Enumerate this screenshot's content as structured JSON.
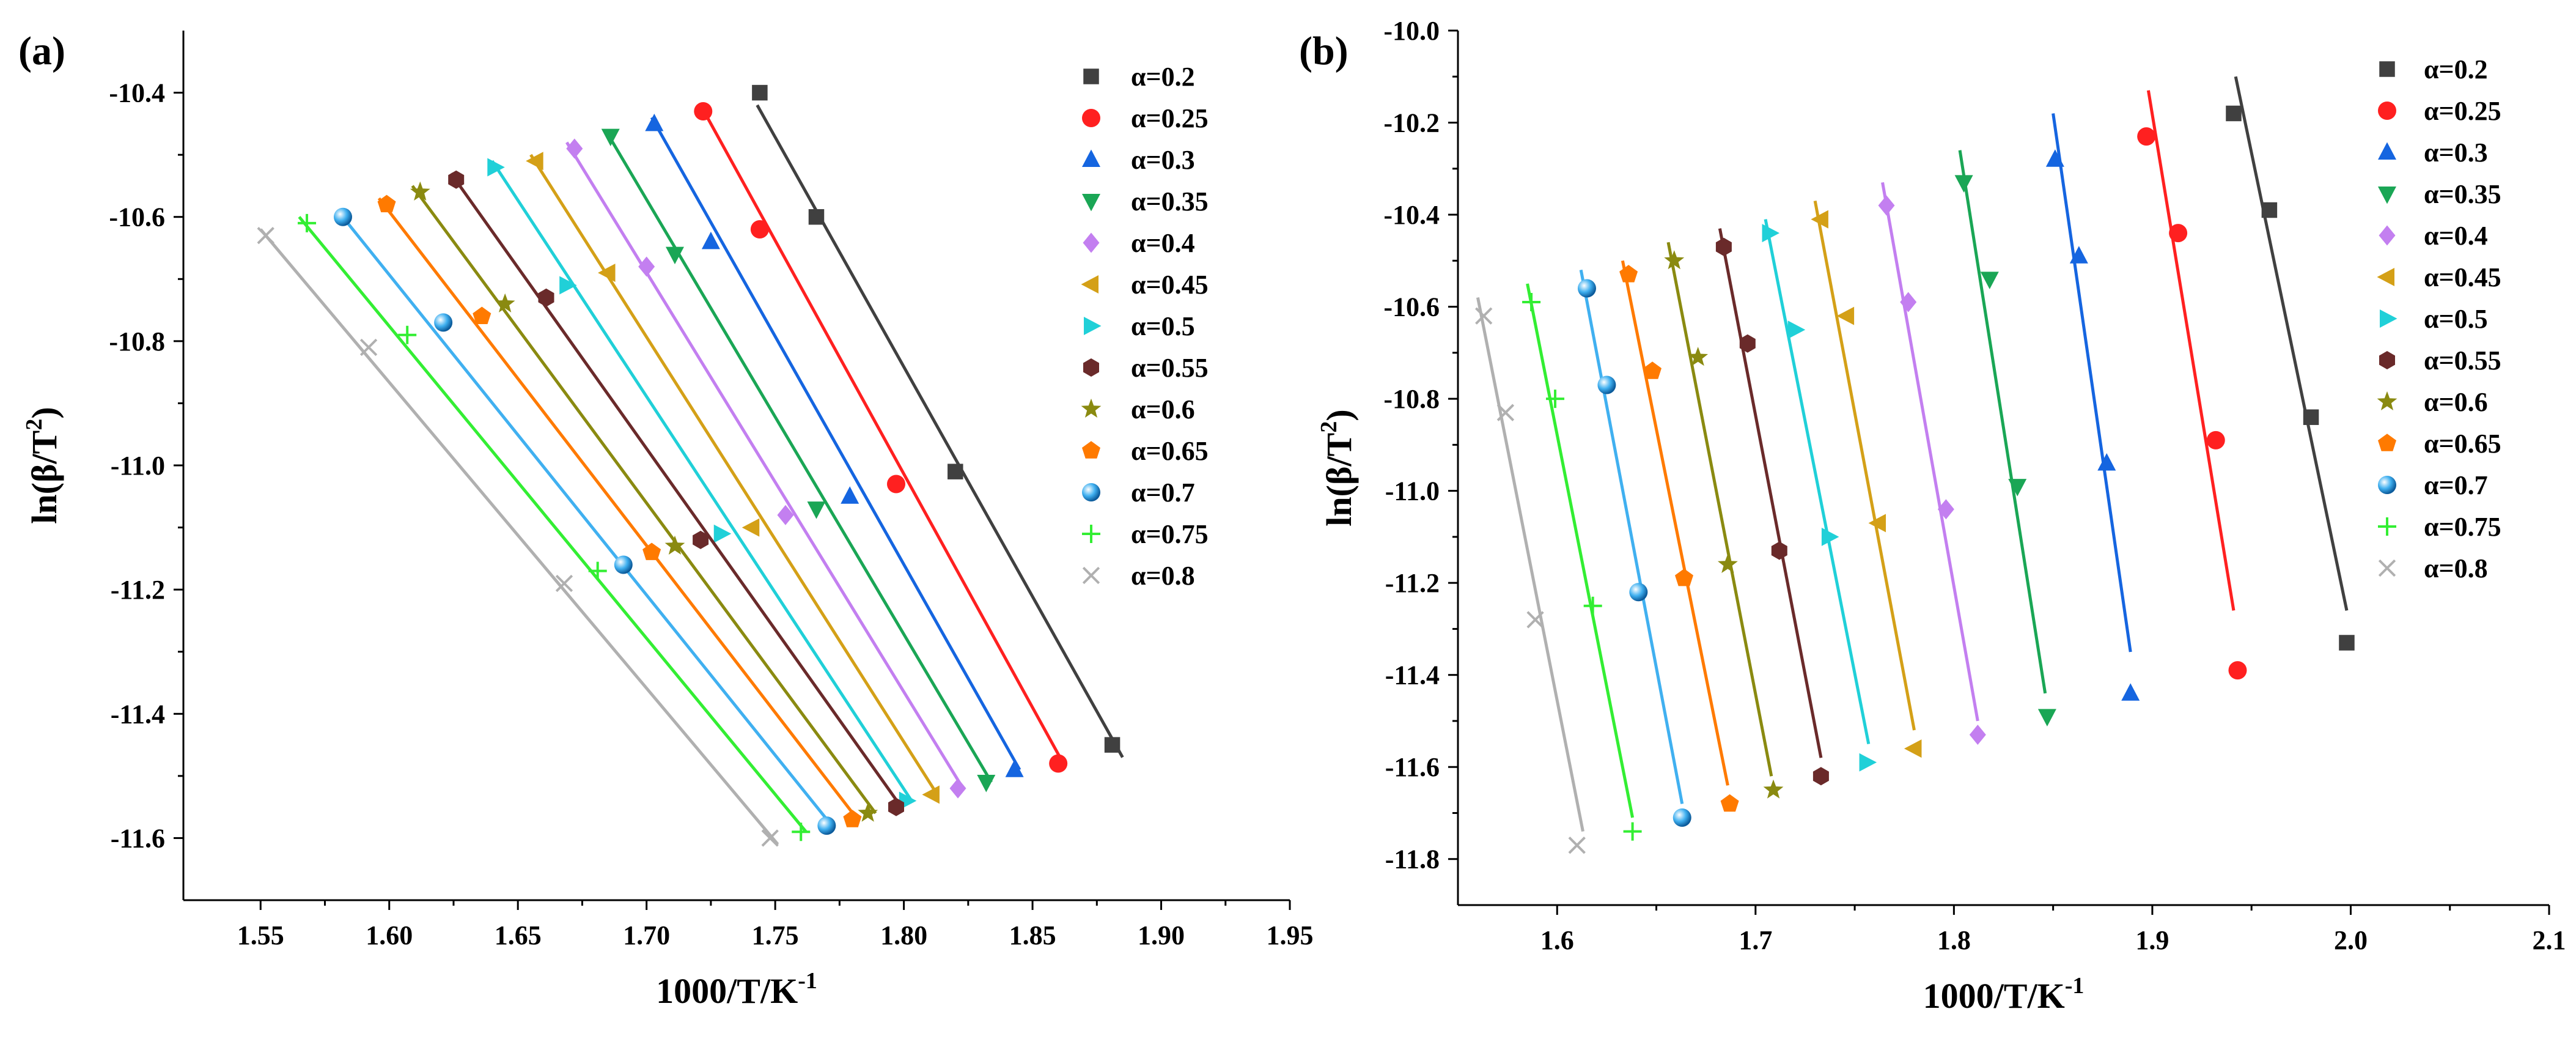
{
  "chart_data": [
    {
      "type": "scatter",
      "panel_label": "(a)",
      "title": "",
      "xlabel": "1000/T/K",
      "xlabel_sup": "-1",
      "ylabel_prefix": "ln(β/T",
      "ylabel_sup": "2",
      "ylabel_suffix": ")",
      "xlim": [
        1.52,
        1.95
      ],
      "ylim": [
        -11.7,
        -10.3
      ],
      "xticks": [
        1.55,
        1.6,
        1.65,
        1.7,
        1.75,
        1.8,
        1.85,
        1.9,
        1.95
      ],
      "xtick_labels": [
        "1.55",
        "1.60",
        "1.65",
        "1.70",
        "1.75",
        "1.80",
        "1.85",
        "1.90",
        "1.95"
      ],
      "yticks": [
        -11.6,
        -11.4,
        -11.2,
        -11.0,
        -10.8,
        -10.6,
        -10.4
      ],
      "ytick_labels": [
        "-11.6",
        "-11.4",
        "-11.2",
        "-11.0",
        "-10.8",
        "-10.6",
        "-10.4"
      ],
      "legend_position": "top-right",
      "series": [
        {
          "name": "α=0.2",
          "color": "#404040",
          "marker": "square",
          "x": [
            1.744,
            1.766,
            1.82,
            1.881
          ],
          "y": [
            -10.4,
            -10.6,
            -11.01,
            -11.45
          ],
          "fit": [
            [
              1.743,
              -10.42
            ],
            [
              1.885,
              -11.47
            ]
          ]
        },
        {
          "name": "α=0.25",
          "color": "#ff2020",
          "marker": "circle",
          "x": [
            1.722,
            1.744,
            1.797,
            1.86
          ],
          "y": [
            -10.43,
            -10.62,
            -11.03,
            -11.48
          ],
          "fit": [
            [
              1.721,
              -10.42
            ],
            [
              1.862,
              -11.48
            ]
          ]
        },
        {
          "name": "α=0.3",
          "color": "#1565e0",
          "marker": "triangle-up",
          "x": [
            1.703,
            1.725,
            1.779,
            1.843
          ],
          "y": [
            -10.45,
            -10.64,
            -11.05,
            -11.49
          ],
          "fit": [
            [
              1.702,
              -10.44
            ],
            [
              1.845,
              -11.49
            ]
          ]
        },
        {
          "name": "α=0.35",
          "color": "#1aa655",
          "marker": "triangle-down",
          "x": [
            1.686,
            1.711,
            1.766,
            1.832
          ],
          "y": [
            -10.47,
            -10.66,
            -11.07,
            -11.51
          ],
          "fit": [
            [
              1.684,
              -10.46
            ],
            [
              1.834,
              -11.51
            ]
          ]
        },
        {
          "name": "α=0.4",
          "color": "#c37ff0",
          "marker": "diamond",
          "x": [
            1.672,
            1.7,
            1.754,
            1.821
          ],
          "y": [
            -10.49,
            -10.68,
            -11.08,
            -11.52
          ],
          "fit": [
            [
              1.669,
              -10.48
            ],
            [
              1.823,
              -11.52
            ]
          ]
        },
        {
          "name": "α=0.45",
          "color": "#d4a017",
          "marker": "triangle-left",
          "x": [
            1.657,
            1.685,
            1.741,
            1.811
          ],
          "y": [
            -10.51,
            -10.69,
            -11.1,
            -11.53
          ],
          "fit": [
            [
              1.655,
              -10.5
            ],
            [
              1.813,
              -11.53
            ]
          ]
        },
        {
          "name": "α=0.5",
          "color": "#20d0d8",
          "marker": "triangle-right",
          "x": [
            1.641,
            1.669,
            1.729,
            1.801
          ],
          "y": [
            -10.52,
            -10.71,
            -11.11,
            -11.54
          ],
          "fit": [
            [
              1.64,
              -10.51
            ],
            [
              1.803,
              -11.54
            ]
          ]
        },
        {
          "name": "α=0.55",
          "color": "#6a2a2a",
          "marker": "hexagon",
          "x": [
            1.626,
            1.661,
            1.721,
            1.797
          ],
          "y": [
            -10.54,
            -10.73,
            -11.12,
            -11.55
          ],
          "fit": [
            [
              1.624,
              -10.53
            ],
            [
              1.799,
              -11.55
            ]
          ]
        },
        {
          "name": "α=0.6",
          "color": "#8a8a10",
          "marker": "star",
          "x": [
            1.612,
            1.645,
            1.711,
            1.786
          ],
          "y": [
            -10.56,
            -10.74,
            -11.13,
            -11.56
          ],
          "fit": [
            [
              1.609,
              -10.55
            ],
            [
              1.789,
              -11.56
            ]
          ]
        },
        {
          "name": "α=0.65",
          "color": "#ff7a00",
          "marker": "pentagon",
          "x": [
            1.599,
            1.636,
            1.702,
            1.78
          ],
          "y": [
            -10.58,
            -10.76,
            -11.14,
            -11.57
          ],
          "fit": [
            [
              1.596,
              -10.57
            ],
            [
              1.782,
              -11.57
            ]
          ]
        },
        {
          "name": "α=0.7",
          "color": "#40b0f0",
          "marker": "sphere",
          "x": [
            1.582,
            1.621,
            1.691,
            1.77
          ],
          "y": [
            -10.6,
            -10.77,
            -11.16,
            -11.58
          ],
          "fit": [
            [
              1.58,
              -10.59
            ],
            [
              1.772,
              -11.58
            ]
          ]
        },
        {
          "name": "α=0.75",
          "color": "#33ee33",
          "marker": "plus",
          "x": [
            1.568,
            1.607,
            1.681,
            1.76
          ],
          "y": [
            -10.61,
            -10.79,
            -11.17,
            -11.59
          ],
          "fit": [
            [
              1.565,
              -10.6
            ],
            [
              1.762,
              -11.59
            ]
          ]
        },
        {
          "name": "α=0.8",
          "color": "#b0b0b0",
          "marker": "cross",
          "x": [
            1.552,
            1.592,
            1.668,
            1.748
          ],
          "y": [
            -10.63,
            -10.81,
            -11.19,
            -11.6
          ],
          "fit": [
            [
              1.55,
              -10.62
            ],
            [
              1.751,
              -11.61
            ]
          ]
        }
      ]
    },
    {
      "type": "scatter",
      "panel_label": "(b)",
      "title": "",
      "xlabel": "1000/T/K",
      "xlabel_sup": "-1",
      "ylabel_prefix": "ln(β/T",
      "ylabel_sup": "2",
      "ylabel_suffix": ")",
      "xlim": [
        1.55,
        2.1
      ],
      "ylim": [
        -11.9,
        -10.0
      ],
      "xticks": [
        1.6,
        1.7,
        1.8,
        1.9,
        2.0,
        2.1
      ],
      "xtick_labels": [
        "1.6",
        "1.7",
        "1.8",
        "1.9",
        "2.0",
        "2.1"
      ],
      "yticks": [
        -11.8,
        -11.6,
        -11.4,
        -11.2,
        -11.0,
        -10.8,
        -10.6,
        -10.4,
        -10.2,
        -10.0
      ],
      "ytick_labels": [
        "-11.8",
        "-11.6",
        "-11.4",
        "-11.2",
        "-11.0",
        "-10.8",
        "-10.6",
        "-10.4",
        "-10.2",
        "-10.0"
      ],
      "legend_position": "top-right",
      "series": [
        {
          "name": "α=0.2",
          "color": "#404040",
          "marker": "square",
          "x": [
            1.941,
            1.959,
            1.98,
            1.998
          ],
          "y": [
            -10.18,
            -10.39,
            -10.84,
            -11.33
          ],
          "fit": [
            [
              1.942,
              -10.1
            ],
            [
              1.998,
              -11.26
            ]
          ]
        },
        {
          "name": "α=0.25",
          "color": "#ff2020",
          "marker": "circle",
          "x": [
            1.897,
            1.913,
            1.932,
            1.943
          ],
          "y": [
            -10.23,
            -10.44,
            -10.89,
            -11.39
          ],
          "fit": [
            [
              1.898,
              -10.13
            ],
            [
              1.941,
              -11.26
            ]
          ]
        },
        {
          "name": "α=0.3",
          "color": "#1565e0",
          "marker": "triangle-up",
          "x": [
            1.851,
            1.863,
            1.877,
            1.889
          ],
          "y": [
            -10.28,
            -10.49,
            -10.94,
            -11.44
          ],
          "fit": [
            [
              1.85,
              -10.18
            ],
            [
              1.889,
              -11.35
            ]
          ]
        },
        {
          "name": "α=0.35",
          "color": "#1aa655",
          "marker": "triangle-down",
          "x": [
            1.805,
            1.818,
            1.832,
            1.847
          ],
          "y": [
            -10.33,
            -10.54,
            -10.99,
            -11.49
          ],
          "fit": [
            [
              1.803,
              -10.26
            ],
            [
              1.846,
              -11.44
            ]
          ]
        },
        {
          "name": "α=0.4",
          "color": "#c37ff0",
          "marker": "diamond",
          "x": [
            1.766,
            1.777,
            1.796,
            1.812
          ],
          "y": [
            -10.38,
            -10.59,
            -11.04,
            -11.53
          ],
          "fit": [
            [
              1.764,
              -10.33
            ],
            [
              1.812,
              -11.5
            ]
          ]
        },
        {
          "name": "α=0.45",
          "color": "#d4a017",
          "marker": "triangle-left",
          "x": [
            1.733,
            1.746,
            1.762,
            1.78
          ],
          "y": [
            -10.41,
            -10.62,
            -11.07,
            -11.56
          ],
          "fit": [
            [
              1.73,
              -10.37
            ],
            [
              1.78,
              -11.52
            ]
          ]
        },
        {
          "name": "α=0.5",
          "color": "#20d0d8",
          "marker": "triangle-right",
          "x": [
            1.707,
            1.72,
            1.737,
            1.756
          ],
          "y": [
            -10.44,
            -10.65,
            -11.1,
            -11.59
          ],
          "fit": [
            [
              1.705,
              -10.41
            ],
            [
              1.757,
              -11.55
            ]
          ]
        },
        {
          "name": "α=0.55",
          "color": "#6a2a2a",
          "marker": "hexagon",
          "x": [
            1.684,
            1.696,
            1.712,
            1.733
          ],
          "y": [
            -10.47,
            -10.68,
            -11.13,
            -11.62
          ],
          "fit": [
            [
              1.682,
              -10.43
            ],
            [
              1.733,
              -11.58
            ]
          ]
        },
        {
          "name": "α=0.6",
          "color": "#8a8a10",
          "marker": "star",
          "x": [
            1.659,
            1.671,
            1.686,
            1.709
          ],
          "y": [
            -10.5,
            -10.71,
            -11.16,
            -11.65
          ],
          "fit": [
            [
              1.656,
              -10.46
            ],
            [
              1.708,
              -11.62
            ]
          ]
        },
        {
          "name": "α=0.65",
          "color": "#ff7a00",
          "marker": "pentagon",
          "x": [
            1.636,
            1.648,
            1.664,
            1.687
          ],
          "y": [
            -10.53,
            -10.74,
            -11.19,
            -11.68
          ],
          "fit": [
            [
              1.633,
              -10.5
            ],
            [
              1.686,
              -11.64
            ]
          ]
        },
        {
          "name": "α=0.7",
          "color": "#40b0f0",
          "marker": "sphere",
          "x": [
            1.615,
            1.625,
            1.641,
            1.663
          ],
          "y": [
            -10.56,
            -10.77,
            -11.22,
            -11.71
          ],
          "fit": [
            [
              1.612,
              -10.52
            ],
            [
              1.663,
              -11.68
            ]
          ]
        },
        {
          "name": "α=0.75",
          "color": "#33ee33",
          "marker": "plus",
          "x": [
            1.587,
            1.599,
            1.618,
            1.638
          ],
          "y": [
            -10.59,
            -10.8,
            -11.25,
            -11.74
          ],
          "fit": [
            [
              1.585,
              -10.55
            ],
            [
              1.638,
              -11.71
            ]
          ]
        },
        {
          "name": "α=0.8",
          "color": "#b0b0b0",
          "marker": "cross",
          "x": [
            1.563,
            1.574,
            1.589,
            1.61
          ],
          "y": [
            -10.62,
            -10.83,
            -11.28,
            -11.77
          ],
          "fit": [
            [
              1.56,
              -10.58
            ],
            [
              1.613,
              -11.74
            ]
          ]
        }
      ]
    }
  ]
}
